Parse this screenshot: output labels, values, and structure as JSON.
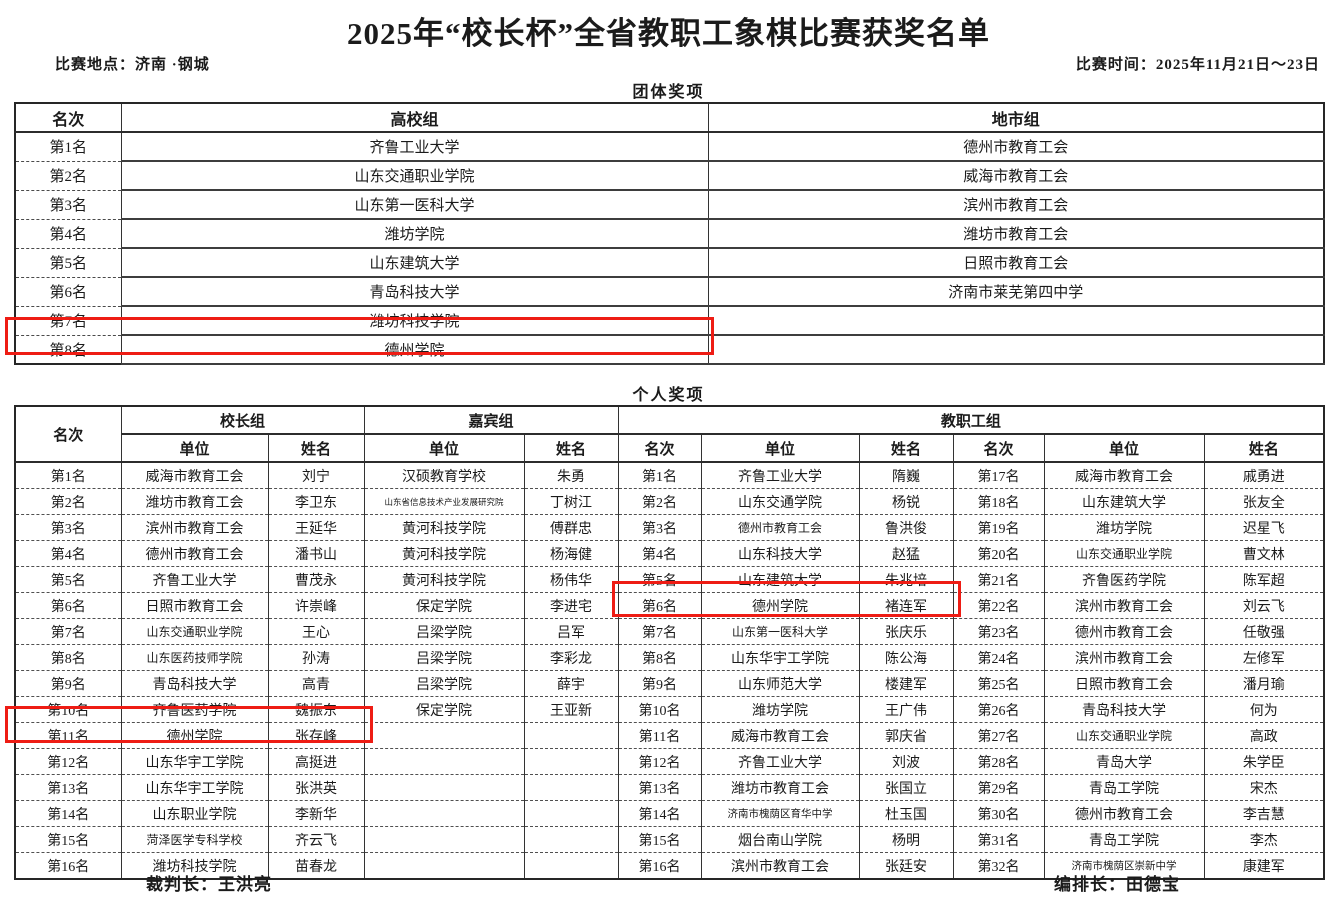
{
  "title": "2025年“校长杯”全省教职工象棋比赛获奖名单",
  "meta": {
    "location": "比赛地点：济南 ·钢城",
    "time": "比赛时间：2025年11月21日～23日"
  },
  "team": {
    "section_title": "团体奖项",
    "headers": [
      "名次",
      "高校组",
      "地市组"
    ],
    "rows": [
      [
        "第1名",
        "齐鲁工业大学",
        "德州市教育工会"
      ],
      [
        "第2名",
        "山东交通职业学院",
        "威海市教育工会"
      ],
      [
        "第3名",
        "山东第一医科大学",
        "滨州市教育工会"
      ],
      [
        "第4名",
        "潍坊学院",
        "潍坊市教育工会"
      ],
      [
        "第5名",
        "山东建筑大学",
        "日照市教育工会"
      ],
      [
        "第6名",
        "青岛科技大学",
        "济南市莱芜第四中学"
      ],
      [
        "第7名",
        "潍坊科技学院",
        ""
      ],
      [
        "第8名",
        "德州学院",
        ""
      ]
    ]
  },
  "individual": {
    "section_title": "个人奖项",
    "headers": {
      "rank": "名次",
      "principal": "校长组",
      "guest": "嘉宾组",
      "faculty": "教职工组",
      "unit": "单位",
      "name": "姓名"
    },
    "rows": [
      [
        "第1名",
        "威海市教育工会",
        "刘宁",
        "汉硕教育学校",
        "朱勇",
        "第1名",
        "齐鲁工业大学",
        "隋巍",
        "第17名",
        "威海市教育工会",
        "戚勇进"
      ],
      [
        "第2名",
        "潍坊市教育工会",
        "李卫东",
        "山东省信息技术产业发展研究院",
        "丁树江",
        "第2名",
        "山东交通学院",
        "杨锐",
        "第18名",
        "山东建筑大学",
        "张友全"
      ],
      [
        "第3名",
        "滨州市教育工会",
        "王延华",
        "黄河科技学院",
        "傅群忠",
        "第3名",
        "德州市教育工会",
        "鲁洪俊",
        "第19名",
        "潍坊学院",
        "迟星飞"
      ],
      [
        "第4名",
        "德州市教育工会",
        "潘书山",
        "黄河科技学院",
        "杨海健",
        "第4名",
        "山东科技大学",
        "赵猛",
        "第20名",
        "山东交通职业学院",
        "曹文林"
      ],
      [
        "第5名",
        "齐鲁工业大学",
        "曹茂永",
        "黄河科技学院",
        "杨伟华",
        "第5名",
        "山东建筑大学",
        "朱兆培",
        "第21名",
        "齐鲁医药学院",
        "陈军超"
      ],
      [
        "第6名",
        "日照市教育工会",
        "许崇峰",
        "保定学院",
        "李进宅",
        "第6名",
        "德州学院",
        "褚连军",
        "第22名",
        "滨州市教育工会",
        "刘云飞"
      ],
      [
        "第7名",
        "山东交通职业学院",
        "王心",
        "吕梁学院",
        "吕军",
        "第7名",
        "山东第一医科大学",
        "张庆乐",
        "第23名",
        "德州市教育工会",
        "任敬强"
      ],
      [
        "第8名",
        "山东医药技师学院",
        "孙涛",
        "吕梁学院",
        "李彩龙",
        "第8名",
        "山东华宇工学院",
        "陈公海",
        "第24名",
        "滨州市教育工会",
        "左修军"
      ],
      [
        "第9名",
        "青岛科技大学",
        "高青",
        "吕梁学院",
        "薛宇",
        "第9名",
        "山东师范大学",
        "楼建军",
        "第25名",
        "日照市教育工会",
        "潘月瑜"
      ],
      [
        "第10名",
        "齐鲁医药学院",
        "魏振东",
        "保定学院",
        "王亚新",
        "第10名",
        "潍坊学院",
        "王广伟",
        "第26名",
        "青岛科技大学",
        "何为"
      ],
      [
        "第11名",
        "德州学院",
        "张存峰",
        "",
        "",
        "第11名",
        "威海市教育工会",
        "郭庆省",
        "第27名",
        "山东交通职业学院",
        "高政"
      ],
      [
        "第12名",
        "山东华宇工学院",
        "高挺进",
        "",
        "",
        "第12名",
        "齐鲁工业大学",
        "刘波",
        "第28名",
        "青岛大学",
        "朱学臣"
      ],
      [
        "第13名",
        "山东华宇工学院",
        "张洪英",
        "",
        "",
        "第13名",
        "潍坊市教育工会",
        "张国立",
        "第29名",
        "青岛工学院",
        "宋杰"
      ],
      [
        "第14名",
        "山东职业学院",
        "李新华",
        "",
        "",
        "第14名",
        "济南市槐荫区育华中学",
        "杜玉国",
        "第30名",
        "德州市教育工会",
        "李吉慧"
      ],
      [
        "第15名",
        "菏泽医学专科学校",
        "齐云飞",
        "",
        "",
        "第15名",
        "烟台南山学院",
        "杨明",
        "第31名",
        "青岛工学院",
        "李杰"
      ],
      [
        "第16名",
        "潍坊科技学院",
        "苗春龙",
        "",
        "",
        "第16名",
        "滨州市教育工会",
        "张廷安",
        "第32名",
        "济南市槐荫区崇新中学",
        "康建军"
      ]
    ],
    "cell_sizes": {
      "1-3": "xxs",
      "2-6": "sm",
      "3-9": "sm",
      "6-1": "sm",
      "6-6": "sm",
      "7-1": "sm",
      "10-9": "sm",
      "13-6": "xs",
      "14-1": "sm",
      "15-9": "xs"
    }
  },
  "highlights": [
    {
      "table": "team",
      "rank": "第8名",
      "entry": "德州学院"
    },
    {
      "table": "individual-principal",
      "rank": "第11名",
      "entry": "德州学院 张存峰"
    },
    {
      "table": "individual-faculty",
      "rank": "第6名",
      "entry": "德州学院 褚连军"
    }
  ],
  "footer": {
    "left": "裁判长：王洪亮",
    "right": "编排长：田德宝"
  },
  "colors": {
    "highlight_red": "#ee1c14",
    "border_dark": "#262626"
  }
}
